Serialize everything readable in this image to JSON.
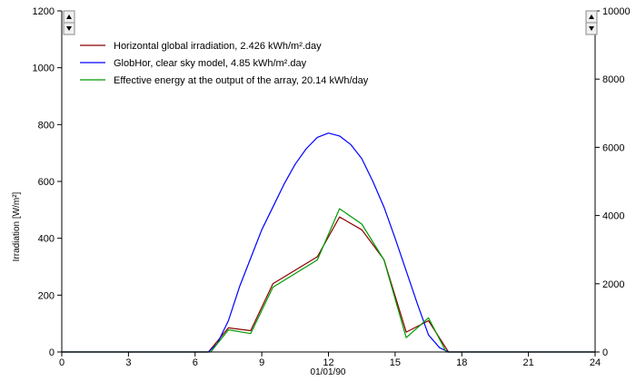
{
  "chart_data": {
    "type": "line",
    "xlabel": "01/01/90",
    "ylabel": "Irradiation  [W/m²]",
    "xlim": [
      0,
      24
    ],
    "ylim": [
      0,
      1200
    ],
    "y2lim": [
      0,
      10000
    ],
    "x_ticks": [
      0,
      3,
      6,
      9,
      12,
      15,
      18,
      21,
      24
    ],
    "y_ticks": [
      0,
      200,
      400,
      600,
      800,
      1000,
      1200
    ],
    "y2_ticks": [
      0,
      2000,
      4000,
      6000,
      8000,
      10000
    ],
    "grid": false,
    "legend_position": "top-left",
    "series": [
      {
        "name": "Horizontal global irradiation,  2.426 kWh/m².day",
        "color": "#8b0000",
        "axis": "left",
        "x": [
          0,
          6.6,
          7.5,
          8.5,
          9.5,
          11.5,
          12.5,
          13.5,
          14.5,
          15.5,
          16.5,
          17.4,
          24
        ],
        "y": [
          0,
          0,
          85,
          75,
          240,
          335,
          475,
          430,
          325,
          70,
          110,
          0,
          0
        ]
      },
      {
        "name": "GlobHor, clear sky model,  4.85 kWh/m².day",
        "color": "#0000ff",
        "axis": "left",
        "x": [
          0,
          6.6,
          7.0,
          7.5,
          8.0,
          8.5,
          9.0,
          9.5,
          10.0,
          10.5,
          11.0,
          11.5,
          12.0,
          12.5,
          13.0,
          13.5,
          14.0,
          14.5,
          15.0,
          15.5,
          16.0,
          16.5,
          17.0,
          17.4,
          24
        ],
        "y": [
          0,
          0,
          30,
          110,
          230,
          330,
          430,
          510,
          590,
          660,
          715,
          755,
          770,
          760,
          730,
          680,
          600,
          510,
          400,
          285,
          170,
          60,
          15,
          0,
          0
        ]
      },
      {
        "name": "Effective energy at the output of the array,  20.14 kWh/day",
        "color": "#009900",
        "axis": "right",
        "x": [
          0,
          6.7,
          7.5,
          8.5,
          9.5,
          11.5,
          12.5,
          13.5,
          14.5,
          15.5,
          16.5,
          17.3,
          24
        ],
        "y": [
          0,
          0,
          650,
          540,
          1900,
          2700,
          4200,
          3750,
          2700,
          420,
          1000,
          0,
          0
        ]
      }
    ]
  },
  "ui": {
    "scroll_up_left": "up-arrow-icon",
    "scroll_down_left": "down-arrow-icon",
    "scroll_up_right": "up-arrow-icon",
    "scroll_down_right": "down-arrow-icon"
  }
}
